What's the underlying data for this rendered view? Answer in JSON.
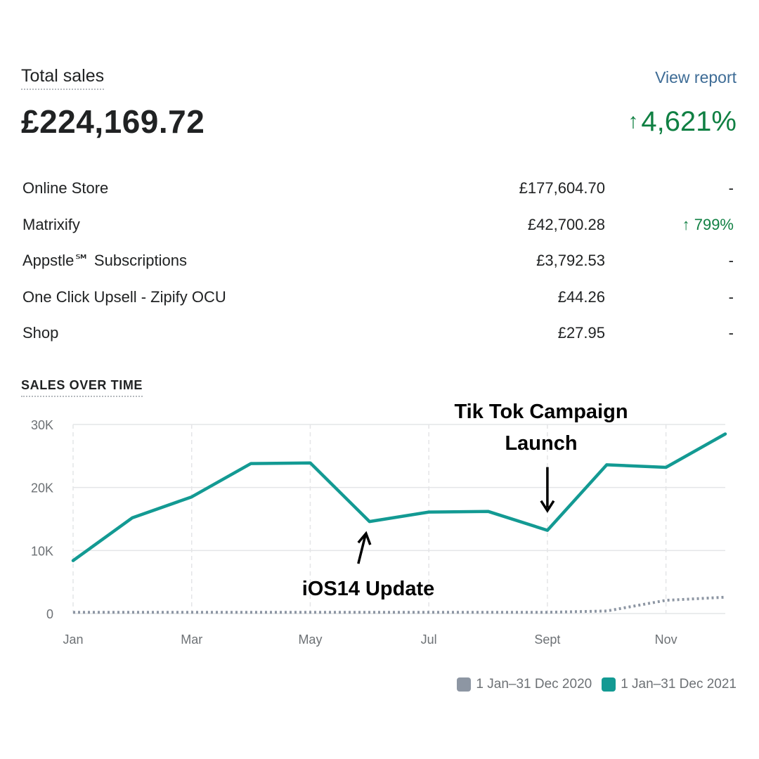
{
  "header": {
    "title": "Total sales",
    "view_report": "View report",
    "total": "£224,169.72",
    "change_arrow": "↑",
    "change": "4,621%"
  },
  "channels": [
    {
      "name": "Online Store",
      "amount": "£177,604.70",
      "delta": "-",
      "up": false
    },
    {
      "name": "Matrixify",
      "amount": "£42,700.28",
      "delta": "↑ 799%",
      "up": true
    },
    {
      "name": "Appstle℠ Subscriptions",
      "amount": "£3,792.53",
      "delta": "-",
      "up": false
    },
    {
      "name": "One Click Upsell - Zipify OCU",
      "amount": "£44.26",
      "delta": "-",
      "up": false
    },
    {
      "name": "Shop",
      "amount": "£27.95",
      "delta": "-",
      "up": false
    }
  ],
  "chart_heading": "SALES OVER TIME",
  "colors": {
    "accent": "#139a93",
    "previous": "#8d96a3",
    "grid": "#e4e5e7",
    "positive": "#108043"
  },
  "chart_data": {
    "type": "line",
    "x": [
      "Jan",
      "Feb",
      "Mar",
      "Apr",
      "May",
      "Jun",
      "Jul",
      "Aug",
      "Sept",
      "Oct",
      "Nov",
      "Dec"
    ],
    "x_tick_labels": [
      "Jan",
      "Mar",
      "May",
      "Jul",
      "Sept",
      "Nov"
    ],
    "y_tick_labels": [
      "0",
      "10K",
      "20K",
      "30K"
    ],
    "ylim": [
      0,
      30000
    ],
    "grid": true,
    "legend_position": "bottom-right",
    "series": [
      {
        "name": "1 Jan–31 Dec 2020",
        "style": "dotted",
        "values": [
          200,
          200,
          200,
          200,
          200,
          200,
          200,
          200,
          200,
          400,
          2100,
          2600
        ]
      },
      {
        "name": "1 Jan–31 Dec 2021",
        "style": "solid",
        "values": [
          8400,
          15200,
          18500,
          23800,
          23900,
          14600,
          16100,
          16200,
          13200,
          23600,
          23200,
          28500
        ]
      }
    ],
    "annotations": [
      {
        "text_lines": [
          "Tik Tok Campaign",
          "Launch"
        ],
        "x": "Sept",
        "arrow": "down"
      },
      {
        "text_lines": [
          "iOS14 Update"
        ],
        "x": "Jun",
        "arrow": "up"
      }
    ]
  }
}
